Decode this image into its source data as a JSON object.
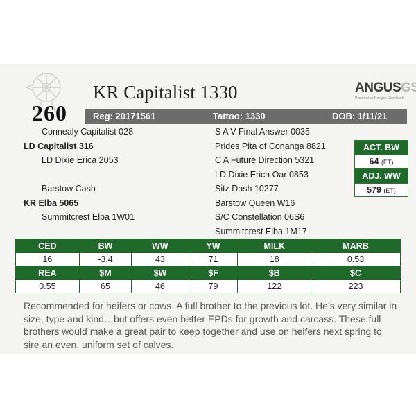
{
  "header": {
    "lot_number": "260",
    "animal_name": "KR Capitalist 1330",
    "logo_text_main": "ANGUS",
    "logo_text_suffix": "GS",
    "logo_tagline": "Powered by Neogen GeneSeek"
  },
  "info_bar": {
    "reg": "Reg: 20171561",
    "tattoo": "Tattoo: 1330",
    "dob": "DOB: 1/11/21"
  },
  "pedigree": {
    "sire_sire": "Connealy Capitalist 028",
    "sire": "LD Capitalist 316",
    "sire_dam": "LD Dixie Erica 2053",
    "dam_sire": "Barstow Cash",
    "dam": "KR Elba 5065",
    "dam_dam": "Summitcrest Elba 1W01",
    "col2": [
      "S A V Final Answer 0035",
      "Prides Pita of Conanga 8821",
      "C A Future Direction 5321",
      "LD Dixie Erica Oar 0853",
      "Sitz Dash 10277",
      "Barstow Queen W16",
      "S/C Constellation 06S6",
      "Summitcrest Elba 1M17"
    ]
  },
  "weights": {
    "act_bw_label": "ACT. BW",
    "act_bw_value": "64",
    "act_bw_unit": "(ET)",
    "adj_ww_label": "ADJ. WW",
    "adj_ww_value": "579",
    "adj_ww_unit": "(ET)"
  },
  "epd_table": {
    "row1_headers": [
      "CED",
      "BW",
      "WW",
      "YW",
      "MILK",
      "MARB"
    ],
    "row1_values": [
      "16",
      "-3.4",
      "43",
      "71",
      "18",
      "0.53"
    ],
    "row2_headers": [
      "REA",
      "$M",
      "$W",
      "$F",
      "$B",
      "$C"
    ],
    "row2_values": [
      "0.55",
      "65",
      "46",
      "79",
      "122",
      "223"
    ]
  },
  "description": "Recommended for heifers or cows. A full brother to the previous lot. He’s very similar in size, type and kind…but offers even better EPDs for growth and carcass. These full brothers would make a great pair to keep together and use on heifers next spring to sire an even, uniform set of calves.",
  "colors": {
    "green": "#1f6a2b",
    "gray_bar": "#6c6c6c",
    "background": "#f4f4f2"
  }
}
